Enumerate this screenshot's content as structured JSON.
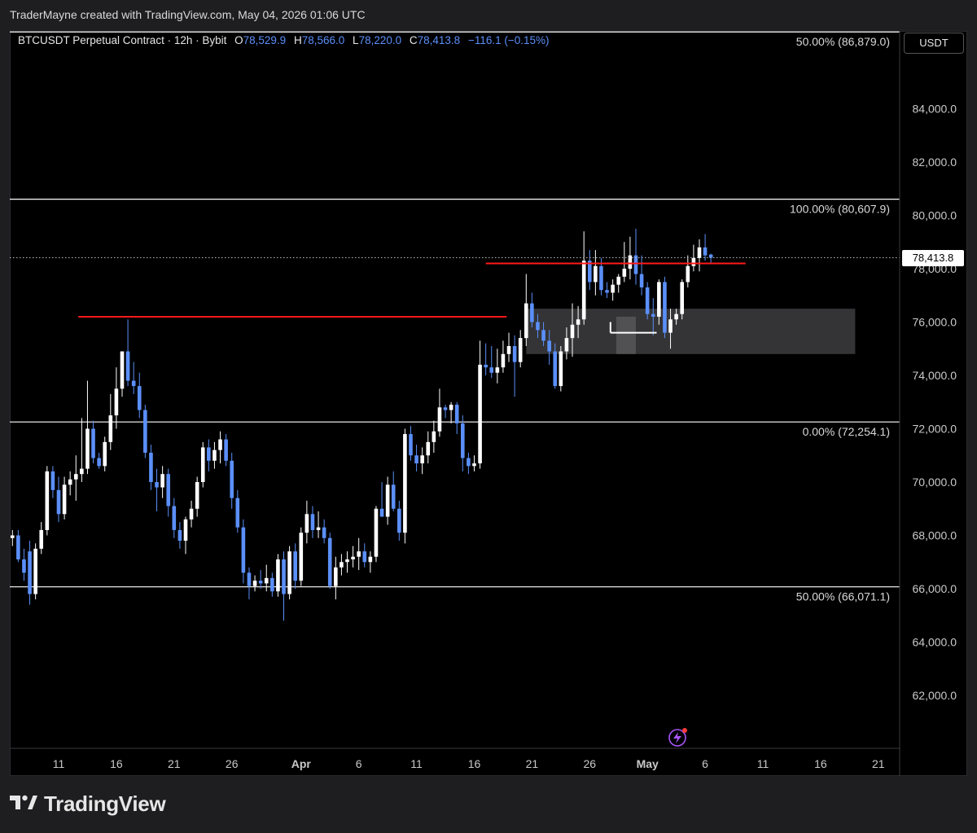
{
  "header": {
    "credit": "TraderMayne created with TradingView.com, May 04, 2026 01:06 UTC"
  },
  "legend": {
    "symbol": "BTCUSDT Perpetual Contract · 12h · Bybit",
    "open_label": "O",
    "open": "78,529.9",
    "high_label": "H",
    "high": "78,566.0",
    "low_label": "L",
    "low": "78,220.0",
    "close_label": "C",
    "close": "78,413.8",
    "change": "−116.1 (−0.15%)"
  },
  "price_scale": {
    "unit": "USDT",
    "last_price": "78,413.8"
  },
  "branding": {
    "name": "TradingView"
  },
  "colors": {
    "up": "#ffffff",
    "down": "#5b8ff9",
    "resistance": "#ff1a1a",
    "zone": "#3a3a3c",
    "fib": "#ffffff"
  },
  "icons": {
    "alert": "lightning-icon",
    "logo": "tradingview-logo-icon"
  },
  "chart_data": {
    "type": "candlestick",
    "title": "BTCUSDT Perpetual Contract · 12h · Bybit",
    "y_unit": "USDT",
    "ylim": [
      60000,
      88000
    ],
    "yticks": [
      {
        "value": 62000,
        "label": "62,000.0"
      },
      {
        "value": 64000,
        "label": "64,000.0"
      },
      {
        "value": 66000,
        "label": "66,000.0"
      },
      {
        "value": 68000,
        "label": "68,000.0"
      },
      {
        "value": 70000,
        "label": "70,000.0"
      },
      {
        "value": 72000,
        "label": "72,000.0"
      },
      {
        "value": 74000,
        "label": "74,000.0"
      },
      {
        "value": 76000,
        "label": "76,000.0"
      },
      {
        "value": 78000,
        "label": "78,000.0"
      },
      {
        "value": 80000,
        "label": "80,000.0"
      },
      {
        "value": 82000,
        "label": "82,000.0"
      },
      {
        "value": 84000,
        "label": "84,000.0"
      }
    ],
    "xticks": [
      {
        "day": 11,
        "label": "11"
      },
      {
        "day": 16,
        "label": "16"
      },
      {
        "day": 21,
        "label": "21"
      },
      {
        "day": 26,
        "label": "26"
      },
      {
        "day": 32,
        "label": "Apr"
      },
      {
        "day": 37,
        "label": "6"
      },
      {
        "day": 42,
        "label": "11"
      },
      {
        "day": 47,
        "label": "16"
      },
      {
        "day": 52,
        "label": "21"
      },
      {
        "day": 57,
        "label": "26"
      },
      {
        "day": 62,
        "label": "May"
      },
      {
        "day": 67,
        "label": "6"
      },
      {
        "day": 72,
        "label": "11"
      },
      {
        "day": 77,
        "label": "16"
      },
      {
        "day": 82,
        "label": "21"
      }
    ],
    "fib_levels": [
      {
        "label": "50.00% (86,879.0)",
        "value": 86879.0
      },
      {
        "label": "100.00% (80,607.9)",
        "value": 80607.9
      },
      {
        "label": "0.00% (72,254.1)",
        "value": 72254.1
      },
      {
        "label": "50.00% (66,071.1)",
        "value": 66071.1
      }
    ],
    "last_price": 78413.8,
    "resistance_lines": [
      {
        "from_day": 12.7,
        "to_day": 49.8,
        "value": 76200
      },
      {
        "from_day": 48.0,
        "to_day": 70.5,
        "value": 78200
      }
    ],
    "demand_zone": {
      "from_day": 51.5,
      "to_day": 80.0,
      "low": 74800,
      "high": 76500
    },
    "candles_start_day": 7.0,
    "candles_step_day": 0.5,
    "candles": [
      {
        "o": 67900,
        "h": 68200,
        "l": 67600,
        "c": 68000
      },
      {
        "o": 68000,
        "h": 68200,
        "l": 67000,
        "c": 67100
      },
      {
        "o": 67100,
        "h": 67500,
        "l": 66300,
        "c": 66600
      },
      {
        "o": 67400,
        "h": 67800,
        "l": 65400,
        "c": 65800
      },
      {
        "o": 65800,
        "h": 67700,
        "l": 65600,
        "c": 67500
      },
      {
        "o": 67500,
        "h": 68500,
        "l": 67300,
        "c": 68200
      },
      {
        "o": 68200,
        "h": 70600,
        "l": 68000,
        "c": 70400
      },
      {
        "o": 70400,
        "h": 70600,
        "l": 69400,
        "c": 69700
      },
      {
        "o": 69700,
        "h": 70200,
        "l": 68500,
        "c": 68800
      },
      {
        "o": 68800,
        "h": 70200,
        "l": 68600,
        "c": 69900
      },
      {
        "o": 69900,
        "h": 70400,
        "l": 69500,
        "c": 70100
      },
      {
        "o": 70100,
        "h": 71000,
        "l": 69300,
        "c": 70300
      },
      {
        "o": 70300,
        "h": 72400,
        "l": 70000,
        "c": 70500
      },
      {
        "o": 70500,
        "h": 73800,
        "l": 70300,
        "c": 72000
      },
      {
        "o": 72000,
        "h": 72300,
        "l": 70700,
        "c": 70900
      },
      {
        "o": 70900,
        "h": 71100,
        "l": 70500,
        "c": 70600
      },
      {
        "o": 70600,
        "h": 71700,
        "l": 70400,
        "c": 71500
      },
      {
        "o": 71500,
        "h": 73300,
        "l": 71200,
        "c": 72500
      },
      {
        "o": 72500,
        "h": 74300,
        "l": 72000,
        "c": 73500
      },
      {
        "o": 73500,
        "h": 74900,
        "l": 73200,
        "c": 74900
      },
      {
        "o": 74900,
        "h": 76100,
        "l": 73600,
        "c": 73800
      },
      {
        "o": 73800,
        "h": 74500,
        "l": 73300,
        "c": 73600
      },
      {
        "o": 73600,
        "h": 74100,
        "l": 72400,
        "c": 72700
      },
      {
        "o": 72700,
        "h": 72900,
        "l": 70900,
        "c": 71100
      },
      {
        "o": 71100,
        "h": 71400,
        "l": 69700,
        "c": 70000
      },
      {
        "o": 70000,
        "h": 70500,
        "l": 68900,
        "c": 69800
      },
      {
        "o": 69800,
        "h": 70600,
        "l": 69400,
        "c": 70300
      },
      {
        "o": 70300,
        "h": 70500,
        "l": 68700,
        "c": 69100
      },
      {
        "o": 69100,
        "h": 69400,
        "l": 67900,
        "c": 68200
      },
      {
        "o": 68200,
        "h": 68500,
        "l": 67500,
        "c": 67800
      },
      {
        "o": 67800,
        "h": 68700,
        "l": 67300,
        "c": 68600
      },
      {
        "o": 68600,
        "h": 69300,
        "l": 68300,
        "c": 69000
      },
      {
        "o": 69000,
        "h": 70200,
        "l": 68700,
        "c": 70000
      },
      {
        "o": 70000,
        "h": 71500,
        "l": 69800,
        "c": 71300
      },
      {
        "o": 71300,
        "h": 71600,
        "l": 70400,
        "c": 70800
      },
      {
        "o": 70800,
        "h": 71500,
        "l": 70500,
        "c": 71200
      },
      {
        "o": 71200,
        "h": 71900,
        "l": 70700,
        "c": 71600
      },
      {
        "o": 71600,
        "h": 71800,
        "l": 70600,
        "c": 70800
      },
      {
        "o": 70800,
        "h": 71100,
        "l": 69000,
        "c": 69400
      },
      {
        "o": 69400,
        "h": 69700,
        "l": 68100,
        "c": 68300
      },
      {
        "o": 68300,
        "h": 68600,
        "l": 66200,
        "c": 66600
      },
      {
        "o": 66600,
        "h": 66800,
        "l": 65600,
        "c": 66100
      },
      {
        "o": 66100,
        "h": 66500,
        "l": 65900,
        "c": 66300
      },
      {
        "o": 66300,
        "h": 66700,
        "l": 66000,
        "c": 66200
      },
      {
        "o": 66200,
        "h": 66900,
        "l": 65900,
        "c": 66400
      },
      {
        "o": 66400,
        "h": 66600,
        "l": 65700,
        "c": 65900
      },
      {
        "o": 65900,
        "h": 67300,
        "l": 65700,
        "c": 67100
      },
      {
        "o": 67100,
        "h": 67400,
        "l": 64800,
        "c": 65800
      },
      {
        "o": 65800,
        "h": 67600,
        "l": 65600,
        "c": 67400
      },
      {
        "o": 67400,
        "h": 67700,
        "l": 66000,
        "c": 66300
      },
      {
        "o": 66300,
        "h": 68300,
        "l": 66100,
        "c": 68100
      },
      {
        "o": 68100,
        "h": 69300,
        "l": 67700,
        "c": 68800
      },
      {
        "o": 68800,
        "h": 69100,
        "l": 67900,
        "c": 68200
      },
      {
        "o": 68200,
        "h": 68900,
        "l": 67900,
        "c": 68300
      },
      {
        "o": 68300,
        "h": 68600,
        "l": 67700,
        "c": 67900
      },
      {
        "o": 67900,
        "h": 68100,
        "l": 66000,
        "c": 66100
      },
      {
        "o": 66100,
        "h": 67200,
        "l": 65600,
        "c": 66800
      },
      {
        "o": 66800,
        "h": 67300,
        "l": 66500,
        "c": 67000
      },
      {
        "o": 67000,
        "h": 67400,
        "l": 66600,
        "c": 67100
      },
      {
        "o": 67100,
        "h": 67600,
        "l": 66800,
        "c": 67200
      },
      {
        "o": 67200,
        "h": 67900,
        "l": 66700,
        "c": 67400
      },
      {
        "o": 67400,
        "h": 67700,
        "l": 66800,
        "c": 67000
      },
      {
        "o": 67000,
        "h": 67400,
        "l": 66600,
        "c": 67200
      },
      {
        "o": 67200,
        "h": 69100,
        "l": 67000,
        "c": 69000
      },
      {
        "o": 69000,
        "h": 70000,
        "l": 68700,
        "c": 68700
      },
      {
        "o": 68700,
        "h": 70200,
        "l": 68400,
        "c": 69900
      },
      {
        "o": 69900,
        "h": 70400,
        "l": 68900,
        "c": 69000
      },
      {
        "o": 69000,
        "h": 69300,
        "l": 67800,
        "c": 68100
      },
      {
        "o": 68100,
        "h": 72000,
        "l": 67700,
        "c": 71800
      },
      {
        "o": 71800,
        "h": 72100,
        "l": 70800,
        "c": 71000
      },
      {
        "o": 71000,
        "h": 71400,
        "l": 70400,
        "c": 70700
      },
      {
        "o": 70700,
        "h": 71300,
        "l": 70300,
        "c": 71000
      },
      {
        "o": 71000,
        "h": 71900,
        "l": 70700,
        "c": 71500
      },
      {
        "o": 71500,
        "h": 72300,
        "l": 71100,
        "c": 71900
      },
      {
        "o": 71900,
        "h": 73500,
        "l": 71700,
        "c": 72800
      },
      {
        "o": 72800,
        "h": 72900,
        "l": 72400,
        "c": 72700
      },
      {
        "o": 72700,
        "h": 73000,
        "l": 72200,
        "c": 72900
      },
      {
        "o": 72900,
        "h": 73000,
        "l": 71800,
        "c": 72200
      },
      {
        "o": 72200,
        "h": 72500,
        "l": 70400,
        "c": 70900
      },
      {
        "o": 70900,
        "h": 71100,
        "l": 70300,
        "c": 70600
      },
      {
        "o": 70600,
        "h": 71000,
        "l": 70400,
        "c": 70700
      },
      {
        "o": 70700,
        "h": 75300,
        "l": 70500,
        "c": 74400
      },
      {
        "o": 74400,
        "h": 75200,
        "l": 74000,
        "c": 74300
      },
      {
        "o": 74300,
        "h": 75100,
        "l": 73900,
        "c": 74100
      },
      {
        "o": 74100,
        "h": 75000,
        "l": 73700,
        "c": 74300
      },
      {
        "o": 74300,
        "h": 75300,
        "l": 74100,
        "c": 74800
      },
      {
        "o": 74800,
        "h": 75600,
        "l": 74500,
        "c": 75100
      },
      {
        "o": 75100,
        "h": 75500,
        "l": 73200,
        "c": 74500
      },
      {
        "o": 74500,
        "h": 75700,
        "l": 74300,
        "c": 75400
      },
      {
        "o": 75400,
        "h": 77800,
        "l": 75100,
        "c": 76700
      },
      {
        "o": 76700,
        "h": 77100,
        "l": 75800,
        "c": 76000
      },
      {
        "o": 76000,
        "h": 76300,
        "l": 75400,
        "c": 75700
      },
      {
        "o": 75700,
        "h": 76000,
        "l": 75100,
        "c": 75300
      },
      {
        "o": 75300,
        "h": 75700,
        "l": 74400,
        "c": 74900
      },
      {
        "o": 74900,
        "h": 75200,
        "l": 73500,
        "c": 73600
      },
      {
        "o": 73600,
        "h": 75100,
        "l": 73400,
        "c": 74900
      },
      {
        "o": 74900,
        "h": 75800,
        "l": 74600,
        "c": 75400
      },
      {
        "o": 75400,
        "h": 76700,
        "l": 74700,
        "c": 75900
      },
      {
        "o": 75900,
        "h": 76600,
        "l": 75400,
        "c": 76100
      },
      {
        "o": 76100,
        "h": 79400,
        "l": 75900,
        "c": 78300
      },
      {
        "o": 78300,
        "h": 78700,
        "l": 77200,
        "c": 77500
      },
      {
        "o": 77500,
        "h": 78700,
        "l": 77000,
        "c": 78100
      },
      {
        "o": 78100,
        "h": 78400,
        "l": 77000,
        "c": 77200
      },
      {
        "o": 77200,
        "h": 77500,
        "l": 76900,
        "c": 77100
      },
      {
        "o": 77100,
        "h": 77600,
        "l": 76800,
        "c": 77400
      },
      {
        "o": 77400,
        "h": 77800,
        "l": 77100,
        "c": 77700
      },
      {
        "o": 77700,
        "h": 79000,
        "l": 77500,
        "c": 78000
      },
      {
        "o": 78000,
        "h": 79200,
        "l": 77600,
        "c": 78500
      },
      {
        "o": 78500,
        "h": 79500,
        "l": 77400,
        "c": 77800
      },
      {
        "o": 77800,
        "h": 78500,
        "l": 77000,
        "c": 77300
      },
      {
        "o": 77300,
        "h": 77500,
        "l": 76100,
        "c": 76300
      },
      {
        "o": 76300,
        "h": 76900,
        "l": 75500,
        "c": 76200
      },
      {
        "o": 76200,
        "h": 77600,
        "l": 75900,
        "c": 77500
      },
      {
        "o": 77500,
        "h": 77700,
        "l": 75400,
        "c": 75600
      },
      {
        "o": 75600,
        "h": 76500,
        "l": 75000,
        "c": 76100
      },
      {
        "o": 76100,
        "h": 76500,
        "l": 75900,
        "c": 76300
      },
      {
        "o": 76300,
        "h": 77600,
        "l": 76100,
        "c": 77500
      },
      {
        "o": 77500,
        "h": 78500,
        "l": 77300,
        "c": 78100
      },
      {
        "o": 78100,
        "h": 78900,
        "l": 77900,
        "c": 78400
      },
      {
        "o": 78400,
        "h": 79100,
        "l": 77900,
        "c": 78800
      },
      {
        "o": 78800,
        "h": 79300,
        "l": 78300,
        "c": 78500
      },
      {
        "o": 78529.9,
        "h": 78566.0,
        "l": 78220.0,
        "c": 78413.8
      }
    ]
  }
}
